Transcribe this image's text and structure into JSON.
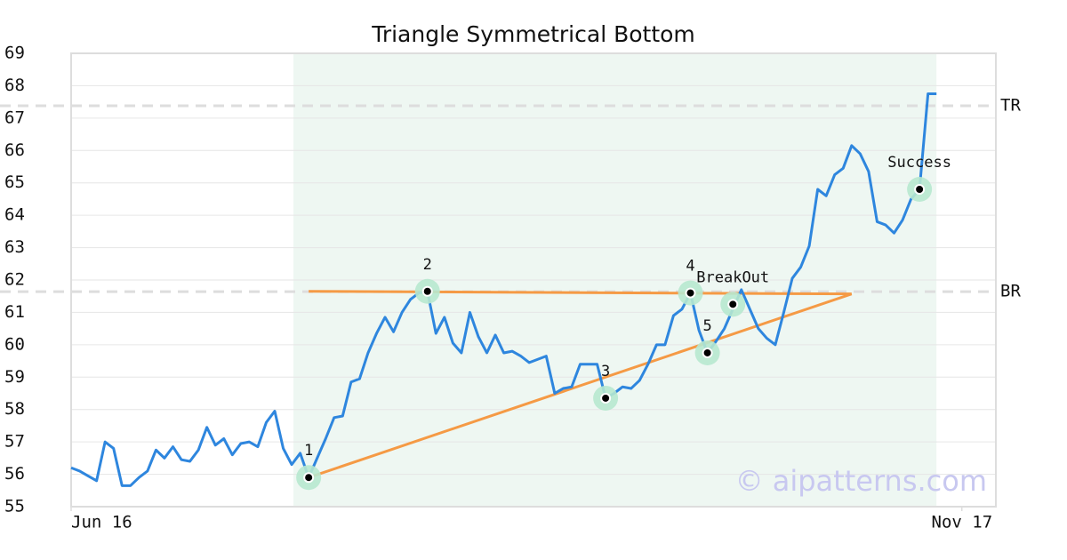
{
  "chart_data": {
    "type": "line",
    "title": "Triangle Symmetrical Bottom",
    "series": [
      {
        "color": "#2e86de",
        "values": [
          56.2,
          56.1,
          55.95,
          55.8,
          57.0,
          56.8,
          55.65,
          55.65,
          55.9,
          56.1,
          56.75,
          56.5,
          56.85,
          56.45,
          56.4,
          56.75,
          57.45,
          56.9,
          57.1,
          56.6,
          56.95,
          57.0,
          56.85,
          57.6,
          57.95,
          56.8,
          56.3,
          56.65,
          55.9,
          56.5,
          57.1,
          57.75,
          57.8,
          58.85,
          58.95,
          59.75,
          60.35,
          60.85,
          60.4,
          61.0,
          61.4,
          61.6,
          61.65,
          60.35,
          60.85,
          60.05,
          59.75,
          61.0,
          60.25,
          59.75,
          60.3,
          59.75,
          59.8,
          59.65,
          59.45,
          59.55,
          59.65,
          58.5,
          58.65,
          58.7,
          59.4,
          59.4,
          59.4,
          58.35,
          58.5,
          58.7,
          58.65,
          58.9,
          59.4,
          60.0,
          60.0,
          60.9,
          61.1,
          61.6,
          60.45,
          59.75,
          60.1,
          60.5,
          61.1,
          61.7,
          61.1,
          60.5,
          60.2,
          60.0,
          61.0,
          62.05,
          62.4,
          63.05,
          64.8,
          64.6,
          65.25,
          65.45,
          66.15,
          65.9,
          65.35,
          63.8,
          63.7,
          63.45,
          63.85,
          64.5,
          64.8,
          67.75,
          67.75
        ]
      }
    ],
    "xlim": [
      0,
      109
    ],
    "xticks": [
      {
        "value": 0,
        "label": "Jun 16"
      },
      {
        "value": 105,
        "label": "Nov 17"
      }
    ],
    "ylim": [
      55,
      69
    ],
    "yticks": [
      55,
      56,
      57,
      58,
      59,
      60,
      61,
      62,
      63,
      64,
      65,
      66,
      67,
      68,
      69
    ],
    "grid": true,
    "highlight_range": [
      26.2,
      102
    ],
    "highlight_color": "#eef7f2",
    "trend_lines": [
      {
        "color": "#f59a45",
        "x": [
          28,
          92
        ],
        "y": [
          61.65,
          61.57
        ]
      },
      {
        "color": "#f59a45",
        "x": [
          28,
          92
        ],
        "y": [
          55.9,
          61.57
        ]
      }
    ],
    "reference_lines": [
      {
        "label": "TR",
        "value": 67.38
      },
      {
        "label": "BR",
        "value": 61.64
      }
    ],
    "annotations": [
      {
        "label": "1",
        "x": 28,
        "y": 55.9
      },
      {
        "label": "2",
        "x": 42,
        "y": 61.65
      },
      {
        "label": "3",
        "x": 63,
        "y": 58.35
      },
      {
        "label": "4",
        "x": 73,
        "y": 61.6
      },
      {
        "label": "5",
        "x": 75,
        "y": 59.75
      },
      {
        "label": "BreakOut",
        "x": 78,
        "y": 61.25
      },
      {
        "label": "Success",
        "x": 100,
        "y": 64.8
      }
    ],
    "watermark": "© aipatterns.com"
  }
}
